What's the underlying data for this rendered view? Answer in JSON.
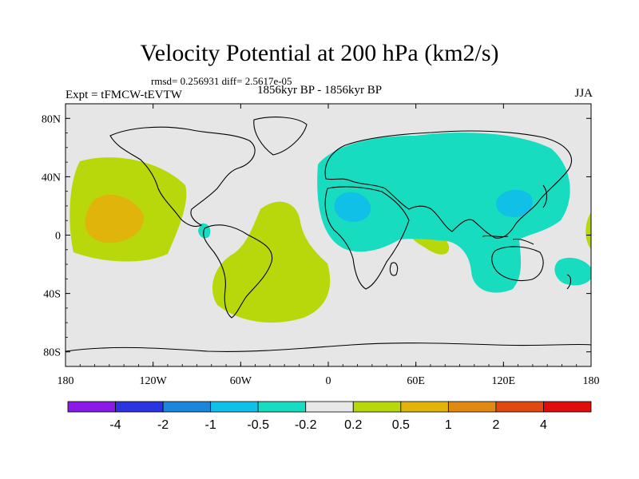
{
  "chart_data": {
    "type": "heatmap",
    "title": "Velocity Potential at 200 hPa (km2/s)",
    "stats_text": "rmsd= 0.256931 diff= 2.5617e-05",
    "experiment_label": "Expt = tFMCW-tEVTW",
    "period_label": "1856kyr BP - 1856kyr BP",
    "season_label": "JJA",
    "x_ticks": [
      {
        "lon": -180,
        "label": "180"
      },
      {
        "lon": -120,
        "label": "120W"
      },
      {
        "lon": -60,
        "label": "60W"
      },
      {
        "lon": 0,
        "label": "0"
      },
      {
        "lon": 60,
        "label": "60E"
      },
      {
        "lon": 120,
        "label": "120E"
      },
      {
        "lon": 180,
        "label": "180"
      }
    ],
    "y_ticks": [
      {
        "lat": 80,
        "label": "80N"
      },
      {
        "lat": 40,
        "label": "40N"
      },
      {
        "lat": 0,
        "label": "0"
      },
      {
        "lat": -40,
        "label": "40S"
      },
      {
        "lat": -80,
        "label": "80S"
      }
    ],
    "xlim": [
      -180,
      180
    ],
    "ylim": [
      -90,
      90
    ],
    "colorbar": {
      "levels": [
        "-4",
        "-2",
        "-1",
        "-0.5",
        "-0.2",
        "0.2",
        "0.5",
        "1",
        "2",
        "4"
      ],
      "colors": [
        "#8b1ae8",
        "#2c33e0",
        "#1a86dc",
        "#10c0e6",
        "#18dcc0",
        "#e8e8e8",
        "#b8d80c",
        "#e0b40a",
        "#e08a12",
        "#e04a10",
        "#e00c0c"
      ]
    }
  }
}
